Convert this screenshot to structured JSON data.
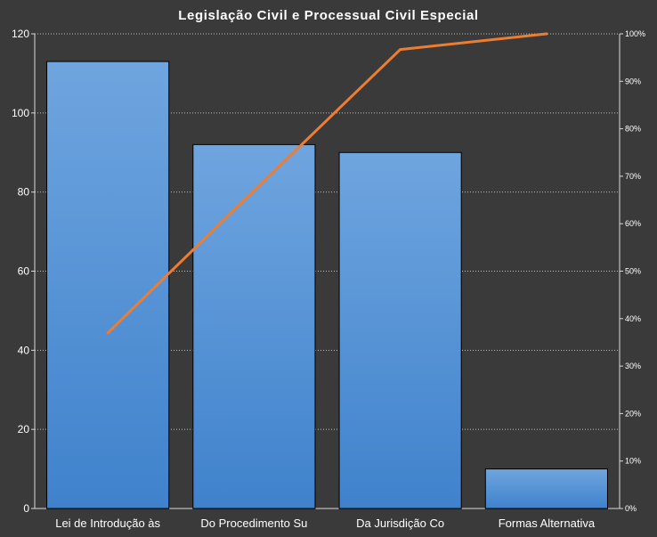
{
  "chart_data": {
    "type": "bar",
    "title": "Legislação Civil e Processual Civil Especial",
    "categories": [
      "Lei de Introdução às",
      "Do Procedimento Su",
      "Da Jurisdição Co",
      "Formas Alternativa"
    ],
    "series": [
      {
        "type": "bar",
        "values": [
          113,
          92,
          90,
          10
        ]
      },
      {
        "type": "line",
        "axis": "right",
        "values": [
          37,
          67,
          96.7,
          100
        ]
      }
    ],
    "y_left": {
      "min": 0,
      "max": 120,
      "ticks": [
        0,
        20,
        40,
        60,
        80,
        100,
        120
      ]
    },
    "y_right": {
      "min": 0,
      "max": 100,
      "ticks": [
        "0%",
        "10%",
        "20%",
        "30%",
        "40%",
        "50%",
        "60%",
        "70%",
        "80%",
        "90%",
        "100%"
      ]
    },
    "grid": true,
    "colors": {
      "background": "#3a3a3a",
      "bar_top": "#6fa5df",
      "bar_bottom": "#3f82cc",
      "line": "#ed7d31",
      "grid": "#bfbfbf",
      "text": "#ffffff"
    }
  }
}
